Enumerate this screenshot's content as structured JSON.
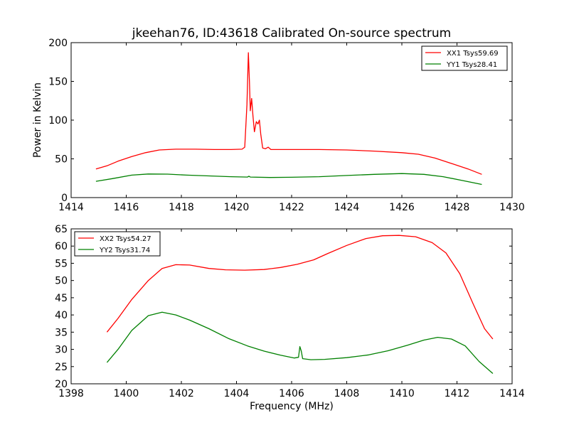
{
  "title": "jkeehan76, ID:43618 Calibrated On-source spectrum",
  "chart_data": [
    {
      "type": "line",
      "ylabel": "Power in Kelvin",
      "xlabel": "",
      "xlim": [
        1414,
        1430
      ],
      "ylim": [
        0,
        200
      ],
      "xticks": [
        "1414",
        "1416",
        "1418",
        "1420",
        "1422",
        "1424",
        "1426",
        "1428",
        "1430"
      ],
      "yticks": [
        "0",
        "50",
        "100",
        "150",
        "200"
      ],
      "grid": false,
      "legend_position": "top-right",
      "series": [
        {
          "name": "XX1 Tsys59.69",
          "color": "#ff0000",
          "points": [
            [
              1414.9,
              37
            ],
            [
              1415.3,
              41
            ],
            [
              1415.7,
              47
            ],
            [
              1416.2,
              53
            ],
            [
              1416.7,
              58
            ],
            [
              1417.2,
              61.5
            ],
            [
              1417.8,
              62.5
            ],
            [
              1418.5,
              62.5
            ],
            [
              1419.2,
              62
            ],
            [
              1419.8,
              62
            ],
            [
              1420.2,
              62.5
            ],
            [
              1420.3,
              65
            ],
            [
              1420.38,
              120
            ],
            [
              1420.43,
              187
            ],
            [
              1420.47,
              150
            ],
            [
              1420.5,
              112
            ],
            [
              1420.55,
              128
            ],
            [
              1420.6,
              105
            ],
            [
              1420.65,
              85
            ],
            [
              1420.72,
              98
            ],
            [
              1420.78,
              95
            ],
            [
              1420.83,
              100
            ],
            [
              1420.88,
              82
            ],
            [
              1420.95,
              64
            ],
            [
              1421.05,
              63
            ],
            [
              1421.15,
              65
            ],
            [
              1421.25,
              62
            ],
            [
              1422,
              62
            ],
            [
              1423,
              62
            ],
            [
              1424,
              61.5
            ],
            [
              1425,
              60
            ],
            [
              1426,
              58
            ],
            [
              1426.6,
              56
            ],
            [
              1427.2,
              51
            ],
            [
              1427.8,
              44
            ],
            [
              1428.4,
              37
            ],
            [
              1428.9,
              30
            ]
          ]
        },
        {
          "name": "YY1 Tsys28.41",
          "color": "#008000",
          "points": [
            [
              1414.9,
              21
            ],
            [
              1415.5,
              24.5
            ],
            [
              1416.2,
              29
            ],
            [
              1416.8,
              30.5
            ],
            [
              1417.5,
              30.3
            ],
            [
              1418.2,
              29
            ],
            [
              1419,
              28
            ],
            [
              1419.8,
              27
            ],
            [
              1420.4,
              26.5
            ],
            [
              1420.45,
              27.5
            ],
            [
              1420.5,
              26.5
            ],
            [
              1421.2,
              26
            ],
            [
              1422,
              26.2
            ],
            [
              1423,
              27
            ],
            [
              1424,
              28.5
            ],
            [
              1425,
              30
            ],
            [
              1426,
              31
            ],
            [
              1426.8,
              30
            ],
            [
              1427.5,
              27
            ],
            [
              1428.2,
              22
            ],
            [
              1428.9,
              17
            ]
          ]
        }
      ]
    },
    {
      "type": "line",
      "ylabel": "",
      "xlabel": "Frequency (MHz)",
      "xlim": [
        1398,
        1414
      ],
      "ylim": [
        20,
        65
      ],
      "xticks": [
        "1398",
        "1400",
        "1402",
        "1404",
        "1406",
        "1408",
        "1410",
        "1412",
        "1414"
      ],
      "yticks": [
        "20",
        "25",
        "30",
        "35",
        "40",
        "45",
        "50",
        "55",
        "60",
        "65"
      ],
      "grid": false,
      "legend_position": "top-left",
      "series": [
        {
          "name": "XX2 Tsys54.27",
          "color": "#ff0000",
          "points": [
            [
              1399.3,
              35
            ],
            [
              1399.7,
              39
            ],
            [
              1400.2,
              44.5
            ],
            [
              1400.8,
              50
            ],
            [
              1401.3,
              53.5
            ],
            [
              1401.8,
              54.6
            ],
            [
              1402.3,
              54.5
            ],
            [
              1403,
              53.5
            ],
            [
              1403.6,
              53.1
            ],
            [
              1404.3,
              53.0
            ],
            [
              1405,
              53.2
            ],
            [
              1405.6,
              53.8
            ],
            [
              1406.2,
              54.7
            ],
            [
              1406.8,
              56
            ],
            [
              1407.3,
              57.8
            ],
            [
              1408,
              60.2
            ],
            [
              1408.7,
              62.2
            ],
            [
              1409.3,
              63.0
            ],
            [
              1409.9,
              63.1
            ],
            [
              1410.5,
              62.7
            ],
            [
              1411.1,
              61.0
            ],
            [
              1411.6,
              58
            ],
            [
              1412.1,
              52
            ],
            [
              1412.6,
              43
            ],
            [
              1413,
              36
            ],
            [
              1413.3,
              33
            ]
          ]
        },
        {
          "name": "YY2 Tsys31.74",
          "color": "#008000",
          "points": [
            [
              1399.3,
              26.2
            ],
            [
              1399.7,
              30
            ],
            [
              1400.2,
              35.5
            ],
            [
              1400.8,
              39.8
            ],
            [
              1401.3,
              40.8
            ],
            [
              1401.8,
              40
            ],
            [
              1402.3,
              38.5
            ],
            [
              1403,
              36
            ],
            [
              1403.7,
              33.2
            ],
            [
              1404.4,
              31
            ],
            [
              1405,
              29.5
            ],
            [
              1405.6,
              28.3
            ],
            [
              1406.1,
              27.5
            ],
            [
              1406.25,
              27.7
            ],
            [
              1406.3,
              30.8
            ],
            [
              1406.35,
              29.5
            ],
            [
              1406.4,
              27.3
            ],
            [
              1406.7,
              27
            ],
            [
              1407.2,
              27.1
            ],
            [
              1408,
              27.6
            ],
            [
              1408.8,
              28.4
            ],
            [
              1409.5,
              29.6
            ],
            [
              1410.2,
              31.2
            ],
            [
              1410.8,
              32.7
            ],
            [
              1411.3,
              33.5
            ],
            [
              1411.8,
              33
            ],
            [
              1412.3,
              31
            ],
            [
              1412.8,
              26.5
            ],
            [
              1413.3,
              23
            ]
          ]
        }
      ]
    }
  ]
}
